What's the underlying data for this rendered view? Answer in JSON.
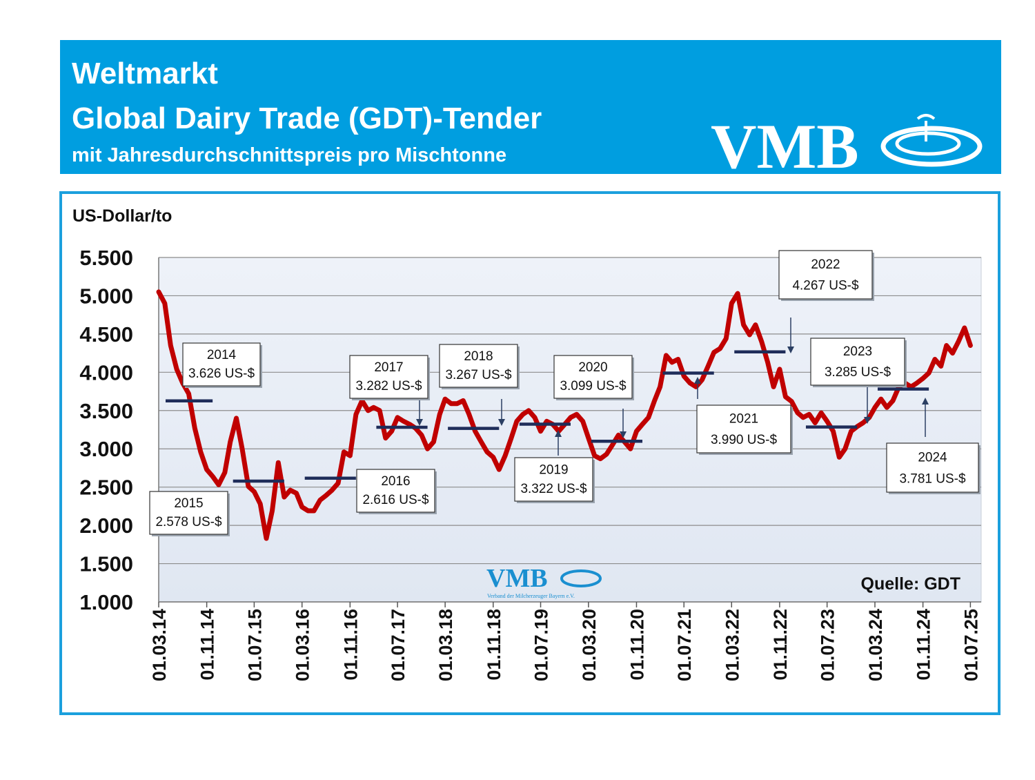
{
  "header": {
    "title": "Weltmarkt",
    "subtitle": "Global Dairy Trade (GDT)-Tender",
    "note": "mit Jahresdurchschnittspreis pro Mischtonne",
    "logo": "VMB"
  },
  "chart_data": {
    "type": "line",
    "y_label": "US-Dollar/to",
    "source": "Quelle: GDT",
    "watermark": {
      "text": "VMB",
      "caption": "Verband der Milcherzeuger Bayern e.V."
    },
    "color": "#c00000",
    "grid": true,
    "ylim": [
      1000,
      5500
    ],
    "yticks": [
      {
        "value": 1000,
        "label": "1.000"
      },
      {
        "value": 1500,
        "label": "1.500"
      },
      {
        "value": 2000,
        "label": "2.000"
      },
      {
        "value": 2500,
        "label": "2.500"
      },
      {
        "value": 3000,
        "label": "3.000"
      },
      {
        "value": 3500,
        "label": "3.500"
      },
      {
        "value": 4000,
        "label": "4.000"
      },
      {
        "value": 4500,
        "label": "4.500"
      },
      {
        "value": 5000,
        "label": "5.000"
      },
      {
        "value": 5500,
        "label": "5.500"
      }
    ],
    "xlim": [
      "2014-03-01",
      "2025-08-25"
    ],
    "xticks": [
      {
        "value": "2014-03-01",
        "label": "01.03.14"
      },
      {
        "value": "2014-11-01",
        "label": "01.11.14"
      },
      {
        "value": "2015-07-01",
        "label": "01.07.15"
      },
      {
        "value": "2016-03-01",
        "label": "01.03.16"
      },
      {
        "value": "2016-11-01",
        "label": "01.11.16"
      },
      {
        "value": "2017-07-01",
        "label": "01.07.17"
      },
      {
        "value": "2018-03-01",
        "label": "01.03.18"
      },
      {
        "value": "2018-11-01",
        "label": "01.11.18"
      },
      {
        "value": "2019-07-01",
        "label": "01.07.19"
      },
      {
        "value": "2020-03-01",
        "label": "01.03.20"
      },
      {
        "value": "2020-11-01",
        "label": "01.11.20"
      },
      {
        "value": "2021-07-01",
        "label": "01.07.21"
      },
      {
        "value": "2022-03-01",
        "label": "01.03.22"
      },
      {
        "value": "2022-11-01",
        "label": "01.11.22"
      },
      {
        "value": "2023-07-01",
        "label": "01.07.23"
      },
      {
        "value": "2024-03-01",
        "label": "01.03.24"
      },
      {
        "value": "2024-11-01",
        "label": "01.11.24"
      },
      {
        "value": "2025-07-01",
        "label": "01.07.25"
      }
    ],
    "x": [
      "2014-03-01",
      "2014-04-01",
      "2014-05-01",
      "2014-06-01",
      "2014-07-01",
      "2014-08-01",
      "2014-09-01",
      "2014-10-01",
      "2014-11-01",
      "2014-12-01",
      "2015-01-01",
      "2015-02-01",
      "2015-03-01",
      "2015-04-01",
      "2015-05-01",
      "2015-06-01",
      "2015-07-01",
      "2015-08-01",
      "2015-09-01",
      "2015-10-01",
      "2015-11-01",
      "2015-12-01",
      "2016-01-01",
      "2016-02-01",
      "2016-03-01",
      "2016-04-01",
      "2016-05-01",
      "2016-06-01",
      "2016-07-01",
      "2016-08-01",
      "2016-09-01",
      "2016-10-01",
      "2016-11-01",
      "2016-12-01",
      "2017-01-01",
      "2017-02-01",
      "2017-03-01",
      "2017-04-01",
      "2017-05-01",
      "2017-06-01",
      "2017-07-01",
      "2017-08-01",
      "2017-09-01",
      "2017-10-01",
      "2017-11-01",
      "2017-12-01",
      "2018-01-01",
      "2018-02-01",
      "2018-03-01",
      "2018-04-01",
      "2018-05-01",
      "2018-06-01",
      "2018-07-01",
      "2018-08-01",
      "2018-09-01",
      "2018-10-01",
      "2018-11-01",
      "2018-12-01",
      "2019-01-01",
      "2019-02-01",
      "2019-03-01",
      "2019-04-01",
      "2019-05-01",
      "2019-06-01",
      "2019-07-01",
      "2019-08-01",
      "2019-09-01",
      "2019-10-01",
      "2019-11-01",
      "2019-12-01",
      "2020-01-01",
      "2020-02-01",
      "2020-03-01",
      "2020-04-01",
      "2020-05-01",
      "2020-06-01",
      "2020-07-01",
      "2020-08-01",
      "2020-09-01",
      "2020-10-01",
      "2020-11-01",
      "2020-12-01",
      "2021-01-01",
      "2021-02-01",
      "2021-03-01",
      "2021-04-01",
      "2021-05-01",
      "2021-06-01",
      "2021-07-01",
      "2021-08-01",
      "2021-09-01",
      "2021-10-01",
      "2021-11-01",
      "2021-12-01",
      "2022-01-01",
      "2022-02-01",
      "2022-03-01",
      "2022-04-01",
      "2022-05-01",
      "2022-06-01",
      "2022-07-01",
      "2022-08-01",
      "2022-09-01",
      "2022-10-01",
      "2022-11-01",
      "2022-12-01",
      "2023-01-01",
      "2023-02-01",
      "2023-03-01",
      "2023-04-01",
      "2023-05-01",
      "2023-06-01",
      "2023-07-01",
      "2023-08-01",
      "2023-09-01",
      "2023-10-01",
      "2023-11-01",
      "2023-12-01",
      "2024-01-01",
      "2024-02-01",
      "2024-03-01",
      "2024-04-01",
      "2024-05-01",
      "2024-06-01",
      "2024-07-01",
      "2024-08-01",
      "2024-09-01",
      "2024-10-01",
      "2024-11-01",
      "2024-12-01",
      "2025-01-01",
      "2025-02-01",
      "2025-03-01",
      "2025-04-01",
      "2025-05-01",
      "2025-06-01",
      "2025-07-01"
    ],
    "values": [
      5050,
      4900,
      4350,
      4040,
      3860,
      3720,
      3270,
      2960,
      2730,
      2640,
      2530,
      2690,
      3090,
      3400,
      3000,
      2510,
      2440,
      2280,
      1830,
      2190,
      2820,
      2370,
      2460,
      2420,
      2240,
      2190,
      2190,
      2330,
      2390,
      2460,
      2550,
      2960,
      2910,
      3450,
      3630,
      3500,
      3540,
      3500,
      3140,
      3230,
      3410,
      3360,
      3320,
      3270,
      3180,
      3000,
      3090,
      3450,
      3650,
      3590,
      3590,
      3630,
      3450,
      3230,
      3090,
      2960,
      2890,
      2730,
      2910,
      3140,
      3360,
      3450,
      3500,
      3410,
      3230,
      3360,
      3320,
      3230,
      3320,
      3410,
      3450,
      3360,
      3140,
      2910,
      2870,
      2930,
      3050,
      3180,
      3090,
      3000,
      3230,
      3320,
      3410,
      3630,
      3810,
      4220,
      4130,
      4170,
      3950,
      3860,
      3810,
      3900,
      4080,
      4260,
      4310,
      4440,
      4900,
      5030,
      4620,
      4490,
      4620,
      4400,
      4130,
      3810,
      4040,
      3680,
      3620,
      3470,
      3410,
      3450,
      3340,
      3470,
      3360,
      3230,
      2890,
      3000,
      3230,
      3290,
      3340,
      3410,
      3540,
      3650,
      3540,
      3630,
      3810,
      3860,
      3810,
      3860,
      3920,
      3990,
      4170,
      4080,
      4350,
      4250,
      4400,
      4580,
      4350
    ],
    "annual": {
      "color": "#1f2d5a",
      "categories": [
        "2014",
        "2015",
        "2016",
        "2017",
        "2018",
        "2019",
        "2020",
        "2021",
        "2022",
        "2023",
        "2024"
      ],
      "values": [
        3626,
        2578,
        2616,
        3282,
        3267,
        3322,
        3099,
        3990,
        4267,
        3285,
        3781
      ],
      "value_labels": [
        "3.626 US-$",
        "2.578 US-$",
        "2.616 US-$",
        "3.282 US-$",
        "3.267 US-$",
        "3.322 US-$",
        "3.099 US-$",
        "3.990 US-$",
        "4.267 US-$",
        "3.285 US-$",
        "3.781 US-$"
      ]
    }
  }
}
